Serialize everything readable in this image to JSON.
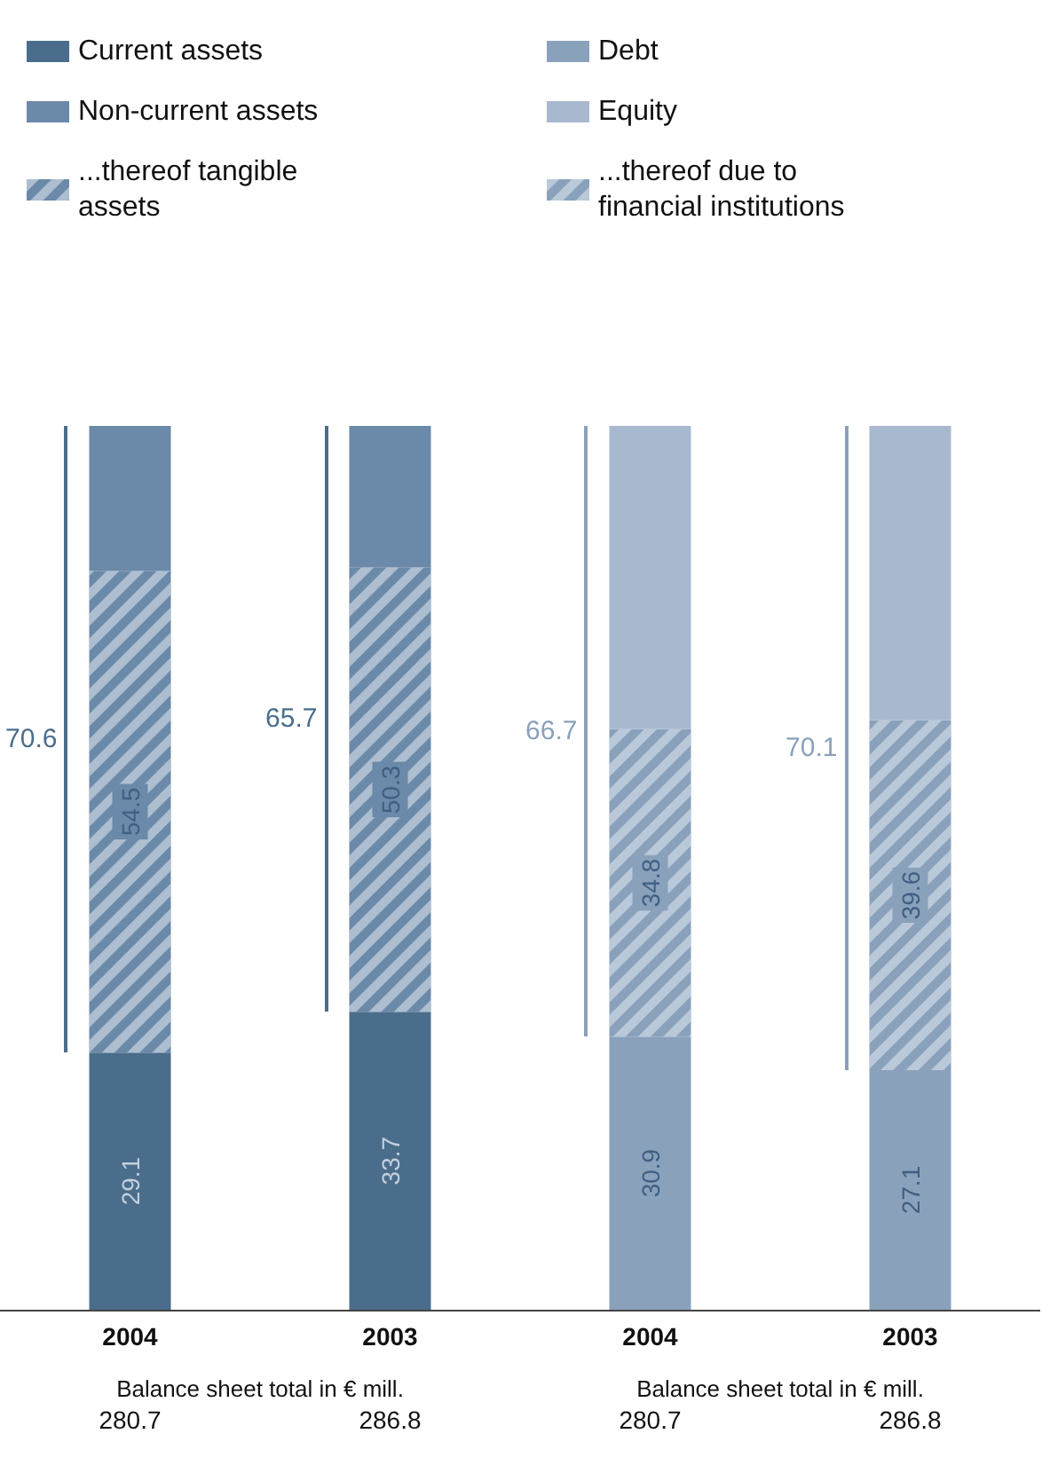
{
  "chart_data": [
    {
      "type": "bar",
      "stacked": true,
      "legend": "top left",
      "categories": [
        "2004",
        "2003"
      ],
      "xlabel": "Balance sheet total in € mill.",
      "series": [
        {
          "name": "Current assets",
          "color": "#4b6d8c",
          "values": [
            29.1,
            33.7
          ],
          "value_labels": [
            "29.1",
            "33.7"
          ]
        },
        {
          "name": "...thereof tangible assets",
          "color": "#6b89a8",
          "values": [
            54.5,
            50.3
          ],
          "value_labels": [
            "54.5",
            "50.3"
          ]
        },
        {
          "name": "Non-current assets",
          "color": "#6b89a8",
          "values": [
            16.4,
            16.0
          ],
          "value_labels": [
            null,
            null
          ]
        }
      ],
      "annotations": [
        "70.6",
        "65.7",
        "280.7",
        "286.8"
      ]
    },
    {
      "type": "bar",
      "stacked": true,
      "legend": "top left",
      "categories": [
        "2004",
        "2003"
      ],
      "xlabel": "Balance sheet total in € mill.",
      "series": [
        {
          "name": "Debt",
          "color": "#8aa1bc",
          "values": [
            30.9,
            27.1
          ],
          "value_labels": [
            "30.9",
            "27.1"
          ]
        },
        {
          "name": "...thereof due to financial institutions",
          "color": "#8aa1bc",
          "values": [
            34.8,
            39.6
          ],
          "value_labels": [
            "34.8",
            "39.6"
          ]
        },
        {
          "name": "Equity",
          "color": "#a8b9cf",
          "values": [
            34.3,
            33.3
          ],
          "value_labels": [
            null,
            null
          ]
        }
      ],
      "annotations": [
        "66.7",
        "70.1",
        "280.7",
        "286.8"
      ]
    }
  ]
}
